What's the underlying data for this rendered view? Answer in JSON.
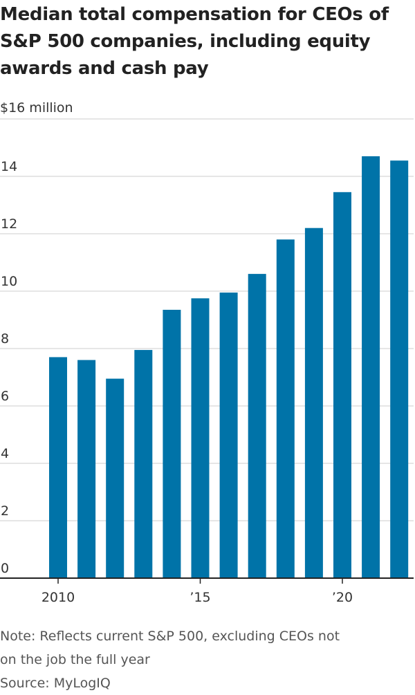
{
  "title": "Median total compensation for CEOs of S&P 500 companies, including equity awards and cash pay",
  "unit_label": "$16 million",
  "note": {
    "line1": "Note: Reflects current S&P 500, excluding CEOs not",
    "line2": "on the job the full year",
    "source": "Source: MyLogIQ"
  },
  "colors": {
    "bar": "#0073a8",
    "grid": "#d6d6d6",
    "axis": "#222222",
    "text": "#333333"
  },
  "chart_data": {
    "type": "bar",
    "title": "Median total compensation for CEOs of S&P 500 companies, including equity awards and cash pay",
    "ylabel": "$16 million",
    "xlabel": "",
    "categories": [
      "2010",
      "2011",
      "2012",
      "2013",
      "2014",
      "2015",
      "2016",
      "2017",
      "2018",
      "2019",
      "2020",
      "2021",
      "2022"
    ],
    "values": [
      7.7,
      7.6,
      6.95,
      7.95,
      9.35,
      9.75,
      9.95,
      10.6,
      11.8,
      12.2,
      13.45,
      14.7,
      14.55
    ],
    "ylim": [
      0,
      16
    ],
    "yticks": [
      0,
      2,
      4,
      6,
      8,
      10,
      12,
      14
    ],
    "xtick_labels": [
      {
        "category": "2010",
        "label": "2010"
      },
      {
        "category": "2015",
        "label": "’15"
      },
      {
        "category": "2020",
        "label": "’20"
      }
    ],
    "grid": true,
    "legend": "none"
  }
}
